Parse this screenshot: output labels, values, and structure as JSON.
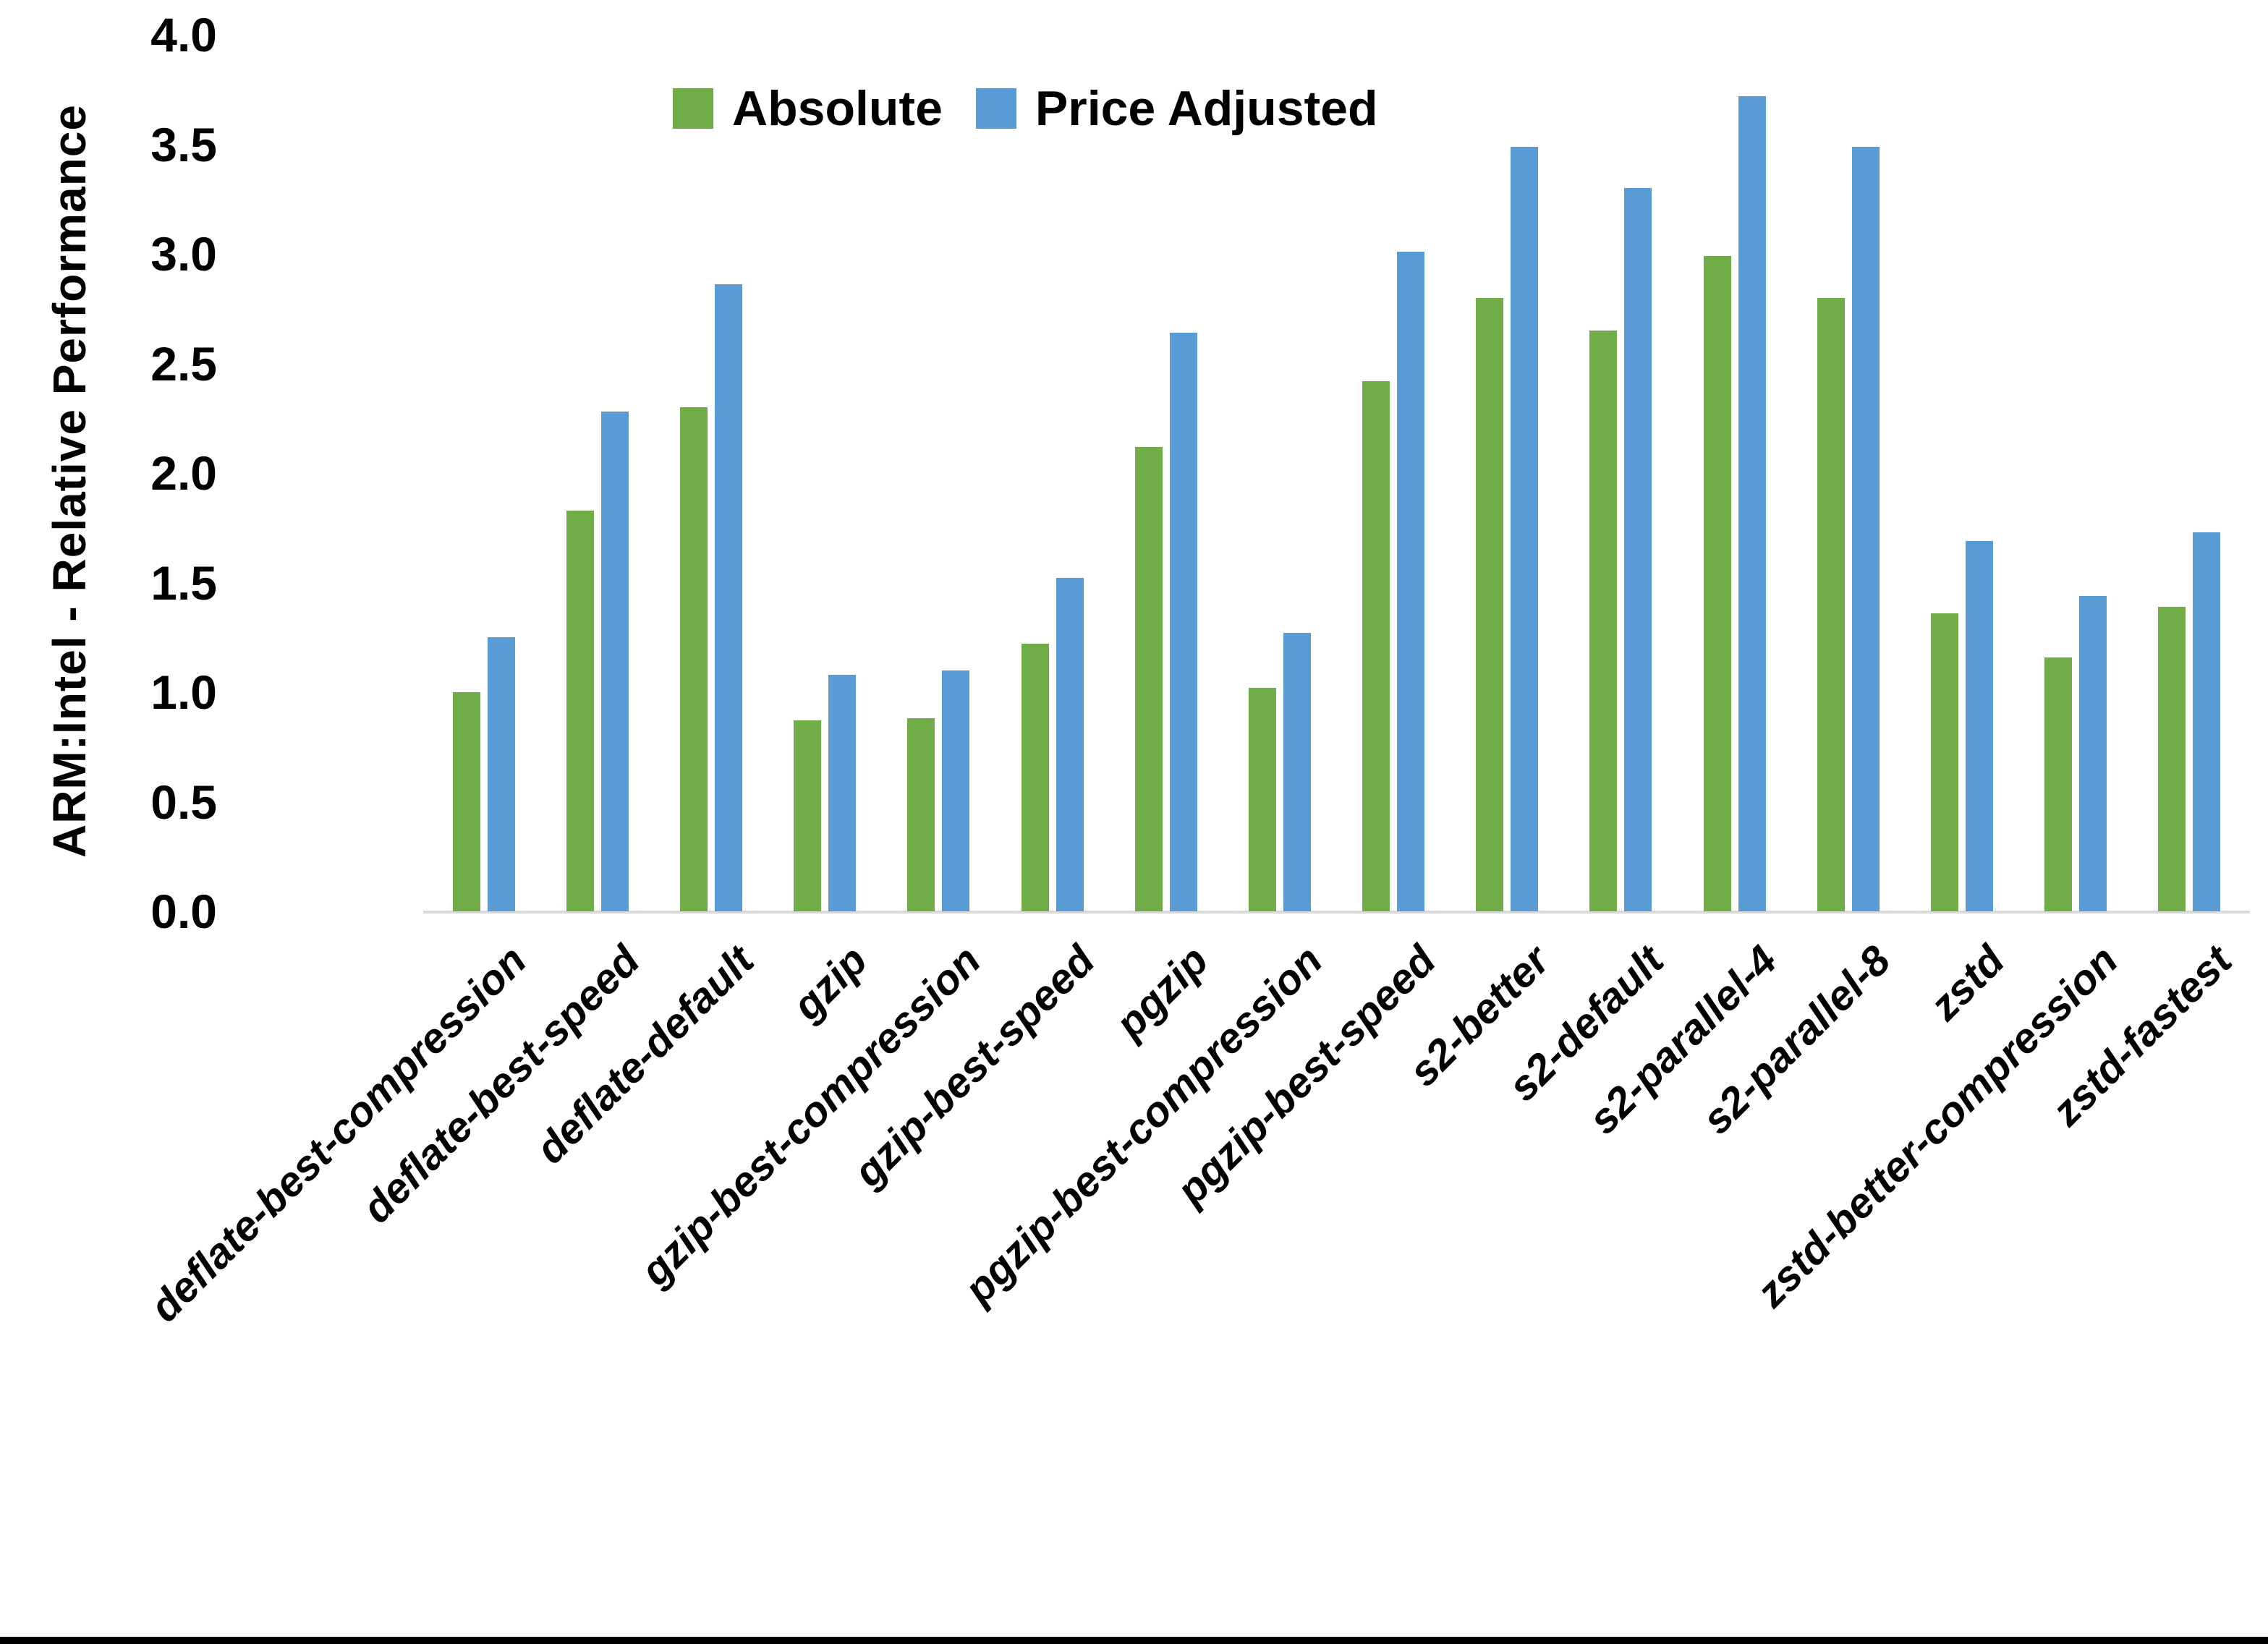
{
  "figure": {
    "background": "#ffffff",
    "bottom_border_color": "#000000",
    "axis_line_color": "#d9d9d9",
    "text_color": "#000000"
  },
  "chart_data": {
    "type": "bar",
    "title": "",
    "xlabel": "",
    "ylabel": "ARM:Intel - Relative Performance",
    "ylim": [
      0,
      4
    ],
    "ytick_step": 0.5,
    "yticks": [
      "0.0",
      "0.5",
      "1.0",
      "1.5",
      "2.0",
      "2.5",
      "3.0",
      "3.5",
      "4.0"
    ],
    "grid": false,
    "legend_position": "top-center",
    "categories": [
      "deflate-best-compression",
      "deflate-best-speed",
      "deflate-default",
      "gzip",
      "gzip-best-compression",
      "gzip-best-speed",
      "pgzip",
      "pgzip-best-compression",
      "pgzip-best-speed",
      "s2-better",
      "s2-default",
      "s2-parallel-4",
      "s2-parallel-8",
      "zstd",
      "zstd-better-compression",
      "zstd-fastest"
    ],
    "series": [
      {
        "name": "Absolute",
        "color": "#70ad47",
        "values": [
          1.0,
          1.83,
          2.3,
          0.87,
          0.88,
          1.22,
          2.12,
          1.02,
          2.42,
          2.8,
          2.65,
          2.99,
          2.8,
          1.36,
          1.16,
          1.39
        ]
      },
      {
        "name": "Price Adjusted",
        "color": "#5b9bd5",
        "values": [
          1.25,
          2.28,
          2.86,
          1.08,
          1.1,
          1.52,
          2.64,
          1.27,
          3.01,
          3.49,
          3.3,
          3.72,
          3.49,
          1.69,
          1.44,
          1.73
        ]
      }
    ]
  }
}
